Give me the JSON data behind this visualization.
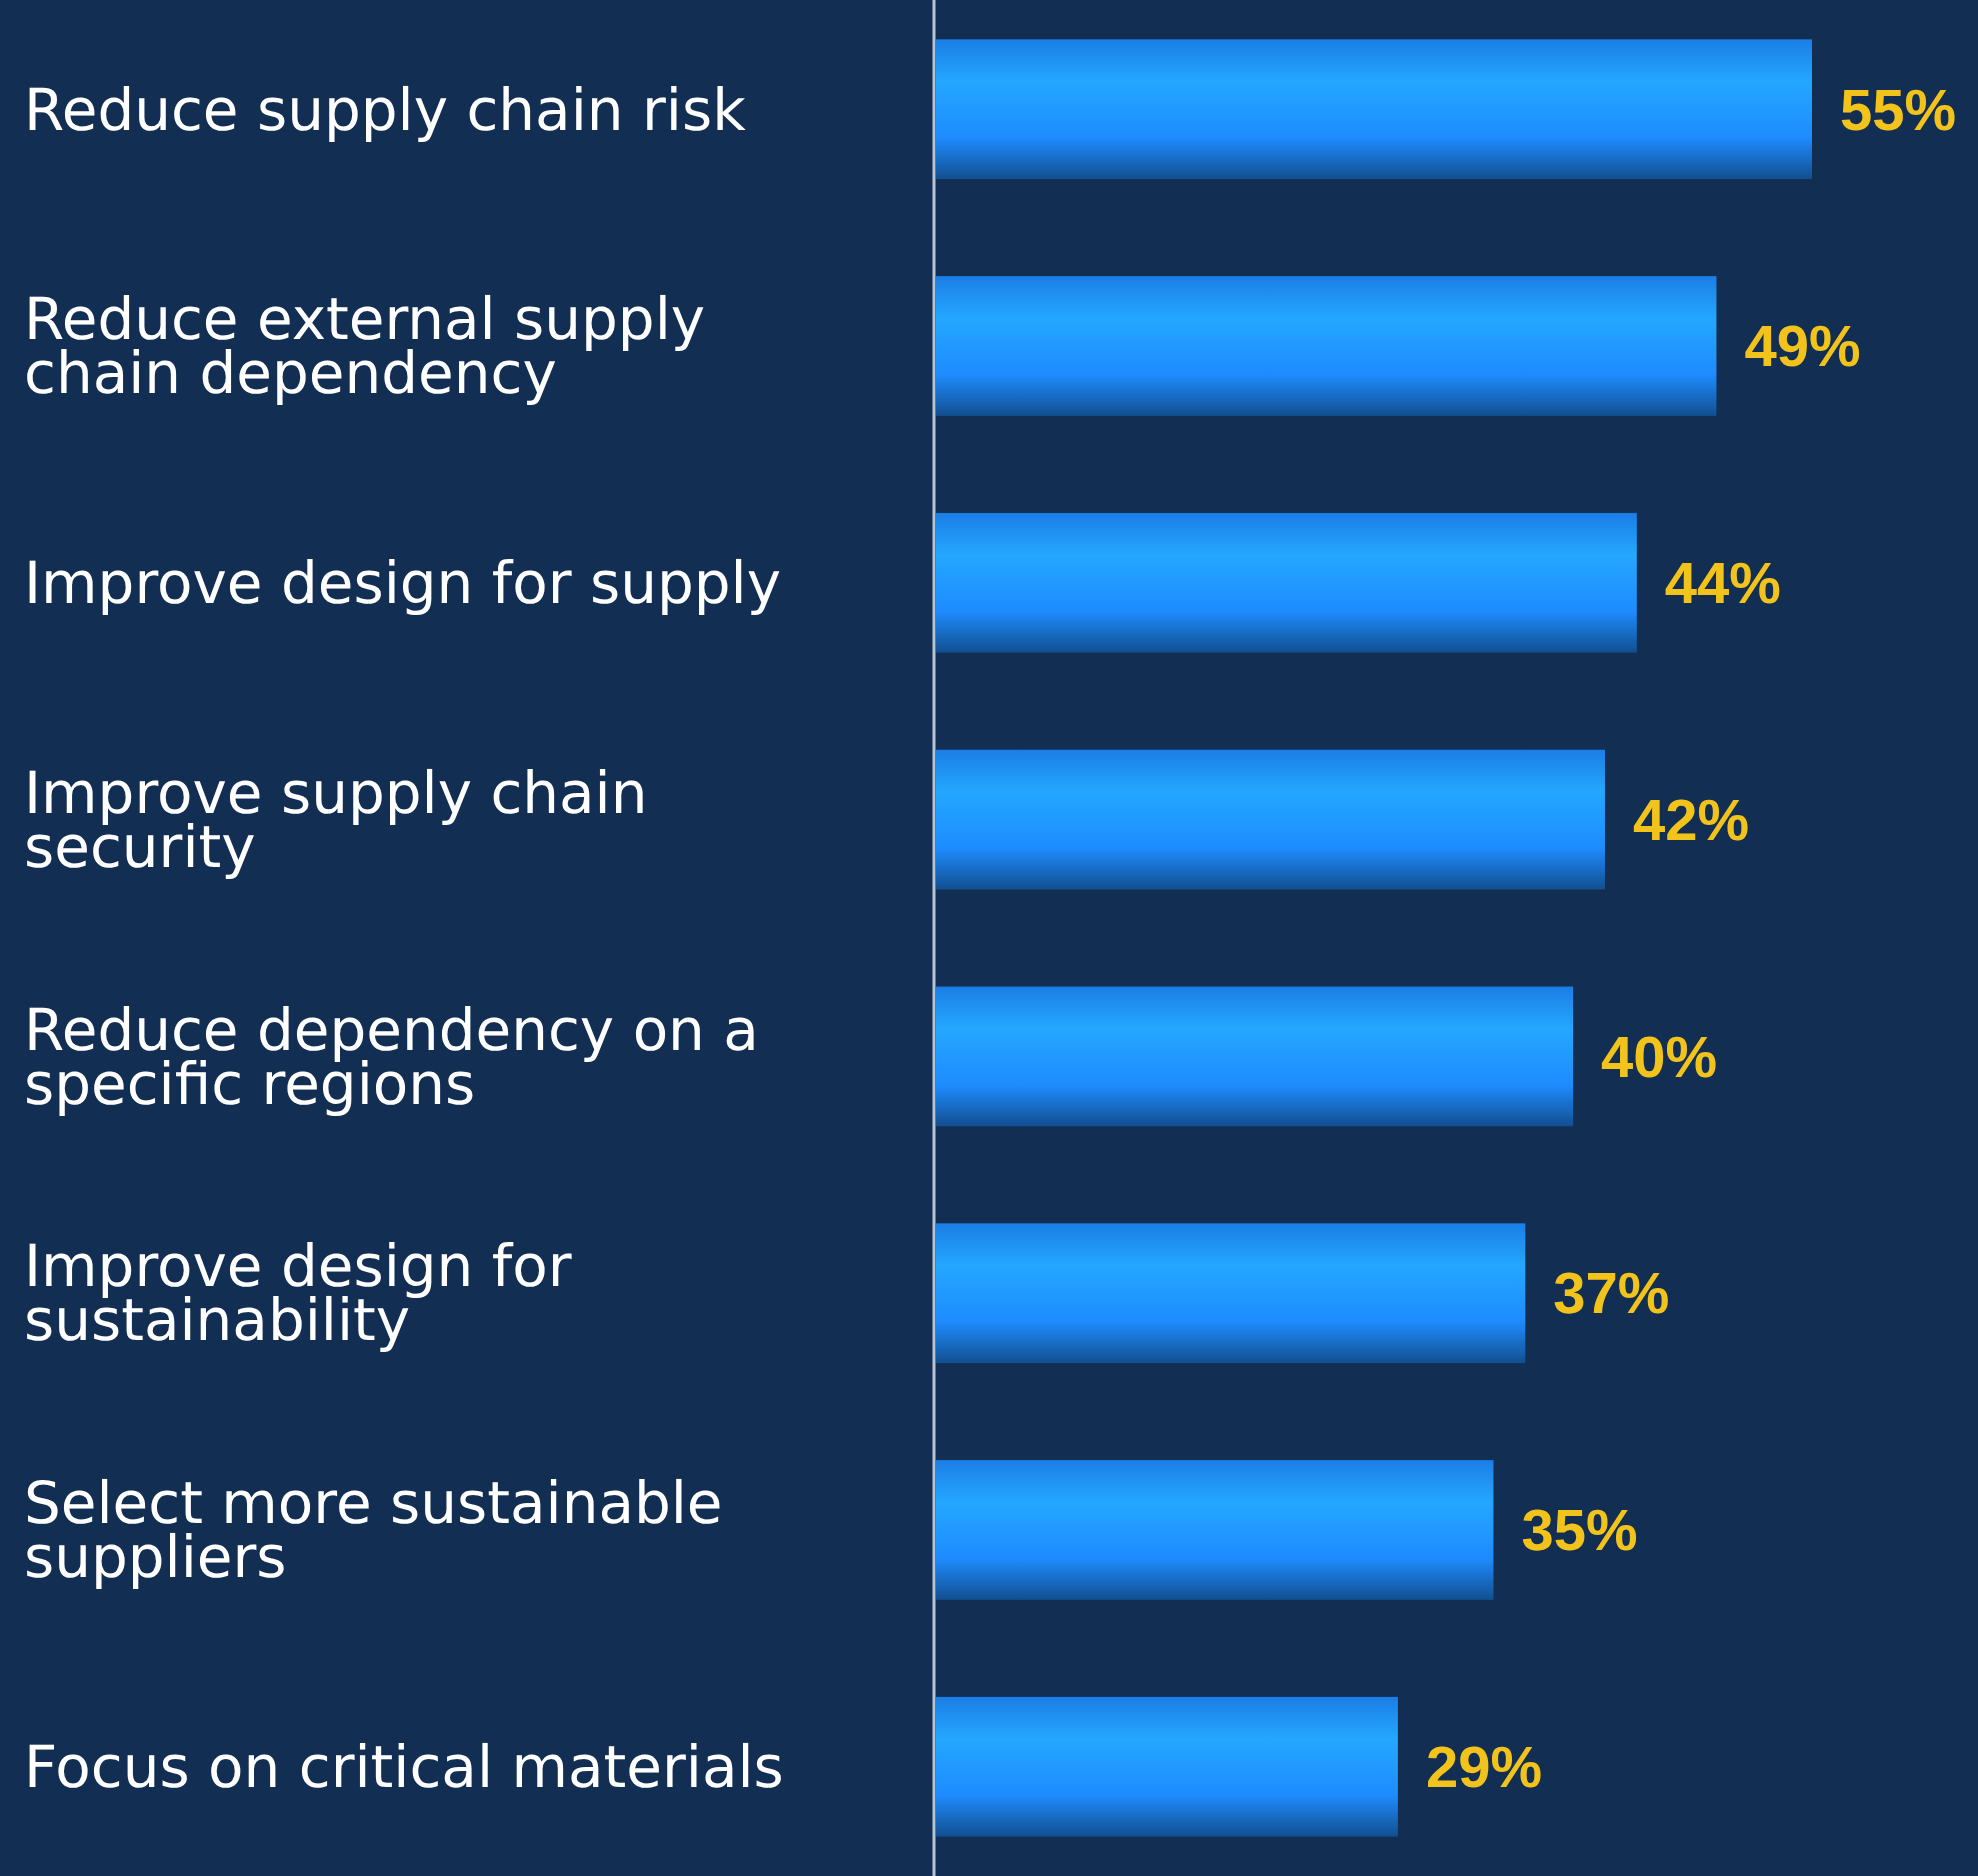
{
  "chart_data": {
    "type": "bar",
    "orientation": "horizontal",
    "categories": [
      "Reduce supply chain risk",
      "Reduce external supply chain dependency",
      "Improve design for supply",
      "Improve supply chain security",
      "Reduce dependency on a specific regions",
      "Improve design for sustainability",
      "Select more sustainable suppliers",
      "Focus on critical materials"
    ],
    "values": [
      55,
      49,
      44,
      42,
      40,
      37,
      35,
      29
    ],
    "value_labels": [
      "55%",
      "49%",
      "44%",
      "42%",
      "40%",
      "37%",
      "35%",
      "29%"
    ],
    "color": "#1e8cff"
  }
}
